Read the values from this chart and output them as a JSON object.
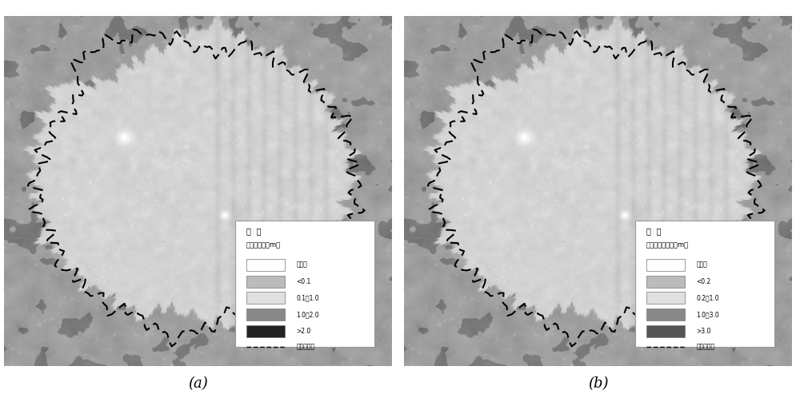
{
  "fig_width": 10.0,
  "fig_height": 4.98,
  "bg_color": "#ffffff",
  "panel_a_label": "(a)",
  "panel_b_label": "(b)",
  "legend_a_title": "图  例",
  "legend_a_subtitle": "动量粗糙度（m）",
  "legend_b_title": "图  例",
  "legend_b_subtitle": "零平面位移高度（m）",
  "legend_a_items": [
    {
      "label": "缺省值",
      "color": "#ffffff"
    },
    {
      "label": "<0.1",
      "color": "#bbbbbb"
    },
    {
      "label": "0.1～1.0",
      "color": "#e0e0e0"
    },
    {
      "label": "1.0～2.0",
      "color": "#888888"
    },
    {
      "label": ">2.0",
      "color": "#222222"
    }
  ],
  "legend_b_items": [
    {
      "label": "缺省值",
      "color": "#ffffff"
    },
    {
      "label": "<0.2",
      "color": "#bbbbbb"
    },
    {
      "label": "0.2～1.0",
      "color": "#e0e0e0"
    },
    {
      "label": "1.0～3.0",
      "color": "#888888"
    },
    {
      "label": ">3.0",
      "color": "#555555"
    }
  ],
  "boundary_label": "研究区范围",
  "inner_base": 0.83,
  "outer_base": 0.62,
  "noise_std_inner": 0.055,
  "noise_std_outer": 0.065
}
